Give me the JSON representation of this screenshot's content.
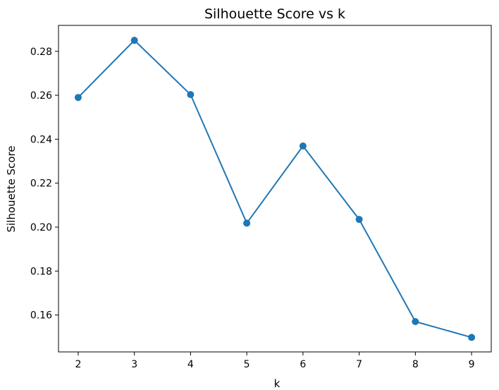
{
  "chart_data": {
    "type": "line",
    "title": "Silhouette Score vs k",
    "xlabel": "k",
    "ylabel": "Silhouette Score",
    "x": [
      2,
      3,
      4,
      5,
      6,
      7,
      8,
      9
    ],
    "series": [
      {
        "values": [
          0.259,
          0.285,
          0.2603,
          0.2018,
          0.2369,
          0.2035,
          0.157,
          0.1498
        ],
        "color": "#1f77b4",
        "marker": "circle"
      }
    ],
    "xlim": [
      1.65,
      9.35
    ],
    "ylim": [
      0.1432,
      0.2918
    ],
    "x_ticks": [
      "2",
      "3",
      "4",
      "5",
      "6",
      "7",
      "8",
      "9"
    ],
    "y_ticks": [
      "0.16",
      "0.18",
      "0.20",
      "0.22",
      "0.24",
      "0.26",
      "0.28"
    ],
    "grid": false,
    "legend": "none"
  }
}
